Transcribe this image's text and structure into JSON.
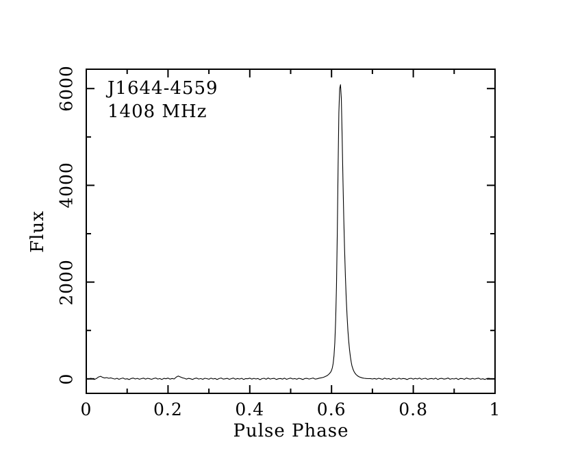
{
  "annotation": {
    "line1": "J1644-4559",
    "line2": "1408 MHz"
  },
  "axes": {
    "xlabel": "Pulse Phase",
    "ylabel": "Flux"
  },
  "colors": {
    "foreground": "#000000",
    "background": "#ffffff"
  },
  "chart_data": {
    "type": "line",
    "title": "J1644-4559 pulse profile",
    "subtitle": "1408 MHz",
    "xlabel": "Pulse Phase",
    "ylabel": "Flux",
    "xlim": [
      0,
      1
    ],
    "ylim": [
      -300,
      6400
    ],
    "grid": false,
    "legend": "none",
    "x_major_ticks": [
      0,
      0.2,
      0.4,
      0.6,
      0.8,
      1
    ],
    "x_major_labels": [
      "0",
      "0.2",
      "0.4",
      "0.6",
      "0.8",
      "1"
    ],
    "x_minor_ticks": [
      0.1,
      0.3,
      0.5,
      0.7,
      0.9
    ],
    "y_major_ticks": [
      0,
      2000,
      4000,
      6000
    ],
    "y_major_labels": [
      "0",
      "2000",
      "4000",
      "6000"
    ],
    "y_minor_ticks": [
      1000,
      3000,
      5000
    ],
    "peak": {
      "phase": 0.622,
      "flux": 6080
    },
    "minor_features": [
      {
        "phase": 0.035,
        "flux": 52
      },
      {
        "phase": 0.225,
        "flux": 58
      }
    ],
    "series": [
      {
        "name": "profile",
        "color": "#000000",
        "segments": [
          {
            "start": 0.0,
            "step": 0.005,
            "flux": [
              2,
              -8,
              10,
              4,
              -12,
              8,
              38,
              52,
              30,
              18,
              26,
              12,
              20,
              6,
              -4,
              12,
              -10,
              6,
              18,
              -6,
              2,
              -14,
              8,
              16,
              -2,
              10,
              -8,
              4,
              14,
              -6,
              12,
              2,
              -10,
              8,
              18,
              -4,
              6,
              -12,
              10,
              2,
              16,
              -6,
              8,
              -2,
              34,
              58,
              40,
              22,
              12,
              -6,
              10,
              2,
              -12,
              8,
              16,
              -4,
              6,
              -10,
              12,
              4,
              -8,
              14,
              -2,
              8,
              -14,
              6,
              18,
              -6,
              2,
              10,
              -10,
              4,
              16,
              -8,
              8,
              -4,
              12,
              -12,
              6,
              2,
              14,
              -6,
              10,
              -2,
              8,
              -16,
              4,
              12,
              -8,
              18,
              -4,
              6,
              10,
              -12,
              2,
              8,
              -6,
              14,
              -10,
              4,
              16,
              -2,
              6,
              -8,
              12,
              2,
              -14,
              8,
              10,
              -4,
              6,
              18,
              -6,
              2
            ]
          },
          {
            "points": [
              [
                0.57,
                15
              ],
              [
                0.575,
                22
              ],
              [
                0.58,
                32
              ],
              [
                0.585,
                48
              ],
              [
                0.59,
                70
              ],
              [
                0.595,
                110
              ],
              [
                0.598,
                140
              ],
              [
                0.6,
                175
              ],
              [
                0.602,
                230
              ],
              [
                0.604,
                320
              ],
              [
                0.606,
                480
              ],
              [
                0.608,
                750
              ],
              [
                0.61,
                1200
              ],
              [
                0.612,
                1900
              ],
              [
                0.614,
                3000
              ],
              [
                0.616,
                4400
              ],
              [
                0.618,
                5500
              ],
              [
                0.62,
                6000
              ],
              [
                0.622,
                6080
              ],
              [
                0.624,
                5800
              ],
              [
                0.626,
                5000
              ],
              [
                0.628,
                4100
              ],
              [
                0.63,
                3300
              ],
              [
                0.632,
                2650
              ],
              [
                0.634,
                2100
              ],
              [
                0.636,
                1650
              ],
              [
                0.638,
                1300
              ],
              [
                0.64,
                1000
              ],
              [
                0.642,
                780
              ],
              [
                0.644,
                600
              ],
              [
                0.646,
                460
              ],
              [
                0.648,
                350
              ],
              [
                0.65,
                270
              ],
              [
                0.653,
                190
              ],
              [
                0.656,
                135
              ],
              [
                0.66,
                90
              ],
              [
                0.664,
                60
              ],
              [
                0.668,
                40
              ],
              [
                0.672,
                28
              ],
              [
                0.676,
                18
              ],
              [
                0.68,
                12
              ],
              [
                0.685,
                8
              ],
              [
                0.69,
                4
              ],
              [
                0.695,
                6
              ],
              [
                0.7,
                -2
              ]
            ]
          },
          {
            "start": 0.705,
            "step": 0.005,
            "flux": [
              8,
              -6,
              12,
              2,
              -10,
              16,
              -2,
              6,
              -12,
              10,
              4,
              -8,
              14,
              -4,
              8,
              2,
              -14,
              6,
              12,
              -6,
              10,
              -2,
              16,
              -8,
              4,
              12,
              -10,
              2,
              8,
              -4,
              14,
              -12,
              6,
              10,
              -6,
              2,
              18,
              -8,
              4,
              -2,
              12,
              -14,
              8,
              6,
              -10,
              16,
              2,
              -6,
              10,
              -4,
              8,
              14,
              -8,
              2,
              -12,
              6,
              12,
              -2,
              4,
              -6
            ]
          }
        ]
      }
    ]
  }
}
